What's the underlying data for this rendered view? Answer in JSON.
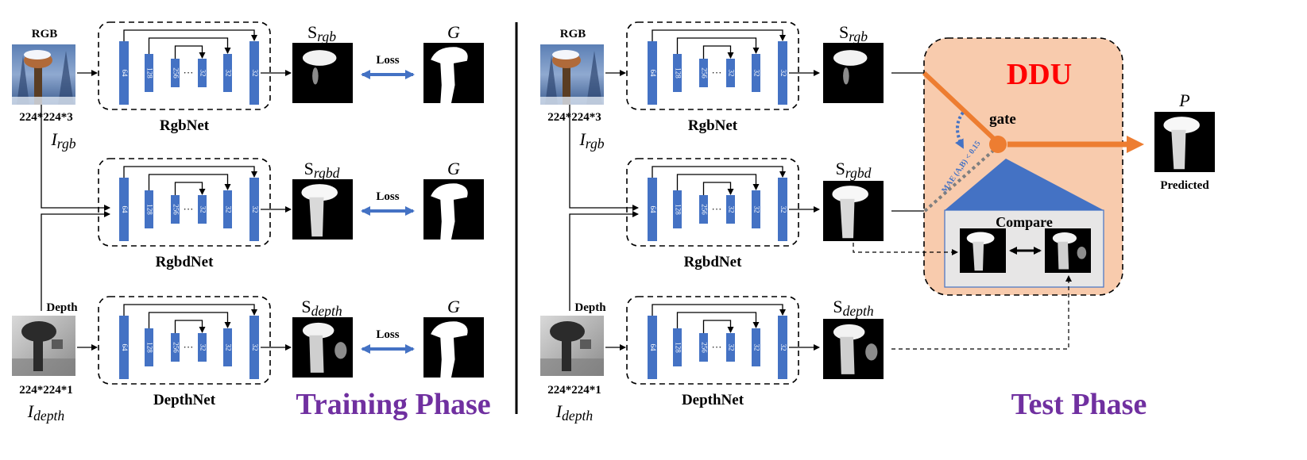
{
  "training": {
    "inputs": {
      "rgb": {
        "title": "RGB",
        "dims": "224*224*3",
        "var": "I",
        "sub": "rgb"
      },
      "depth": {
        "title": "Depth",
        "dims": "224*224*1",
        "var": "I",
        "sub": "depth"
      }
    },
    "nets": [
      {
        "id": "rgbnet",
        "name": "RgbNet",
        "out_symbol": "S",
        "out_sub": "rgb"
      },
      {
        "id": "rgbdnet",
        "name": "RgbdNet",
        "out_symbol": "S",
        "out_sub": "rgbd"
      },
      {
        "id": "depthnet",
        "name": "DepthNet",
        "out_symbol": "S",
        "out_sub": "depth"
      }
    ],
    "gt_label": "G",
    "loss_label": "Loss",
    "phase_title": "Training Phase"
  },
  "test": {
    "inputs": {
      "rgb": {
        "title": "RGB",
        "dims": "224*224*3",
        "var": "I",
        "sub": "rgb"
      },
      "depth": {
        "title": "Depth",
        "dims": "224*224*1",
        "var": "I",
        "sub": "depth"
      }
    },
    "nets": [
      {
        "id": "rgbnet",
        "name": "RgbNet",
        "out_symbol": "S",
        "out_sub": "rgb"
      },
      {
        "id": "rgbdnet",
        "name": "RgbdNet",
        "out_symbol": "S",
        "out_sub": "rgbd"
      },
      {
        "id": "depthnet",
        "name": "DepthNet",
        "out_symbol": "S",
        "out_sub": "depth"
      }
    ],
    "ddu": {
      "title": "DDU",
      "gate": "gate",
      "condition": "MAE (A,B) < 0.15",
      "compare": "Compare"
    },
    "output": {
      "symbol": "P",
      "label": "Predicted"
    },
    "phase_title": "Test Phase"
  },
  "unet_channels": [
    "64",
    "128",
    "256",
    "···",
    "32",
    "32",
    "32"
  ],
  "colors": {
    "block": "#4472C4",
    "loss_arrow": "#4472C4",
    "ddu_fill": "#F8CBAD",
    "ddu_title": "#FF0000",
    "gate": "#ED7D31",
    "phase_title": "#7030A0",
    "compare_fill": "#E7E6E6",
    "triangle": "#4472C4"
  }
}
